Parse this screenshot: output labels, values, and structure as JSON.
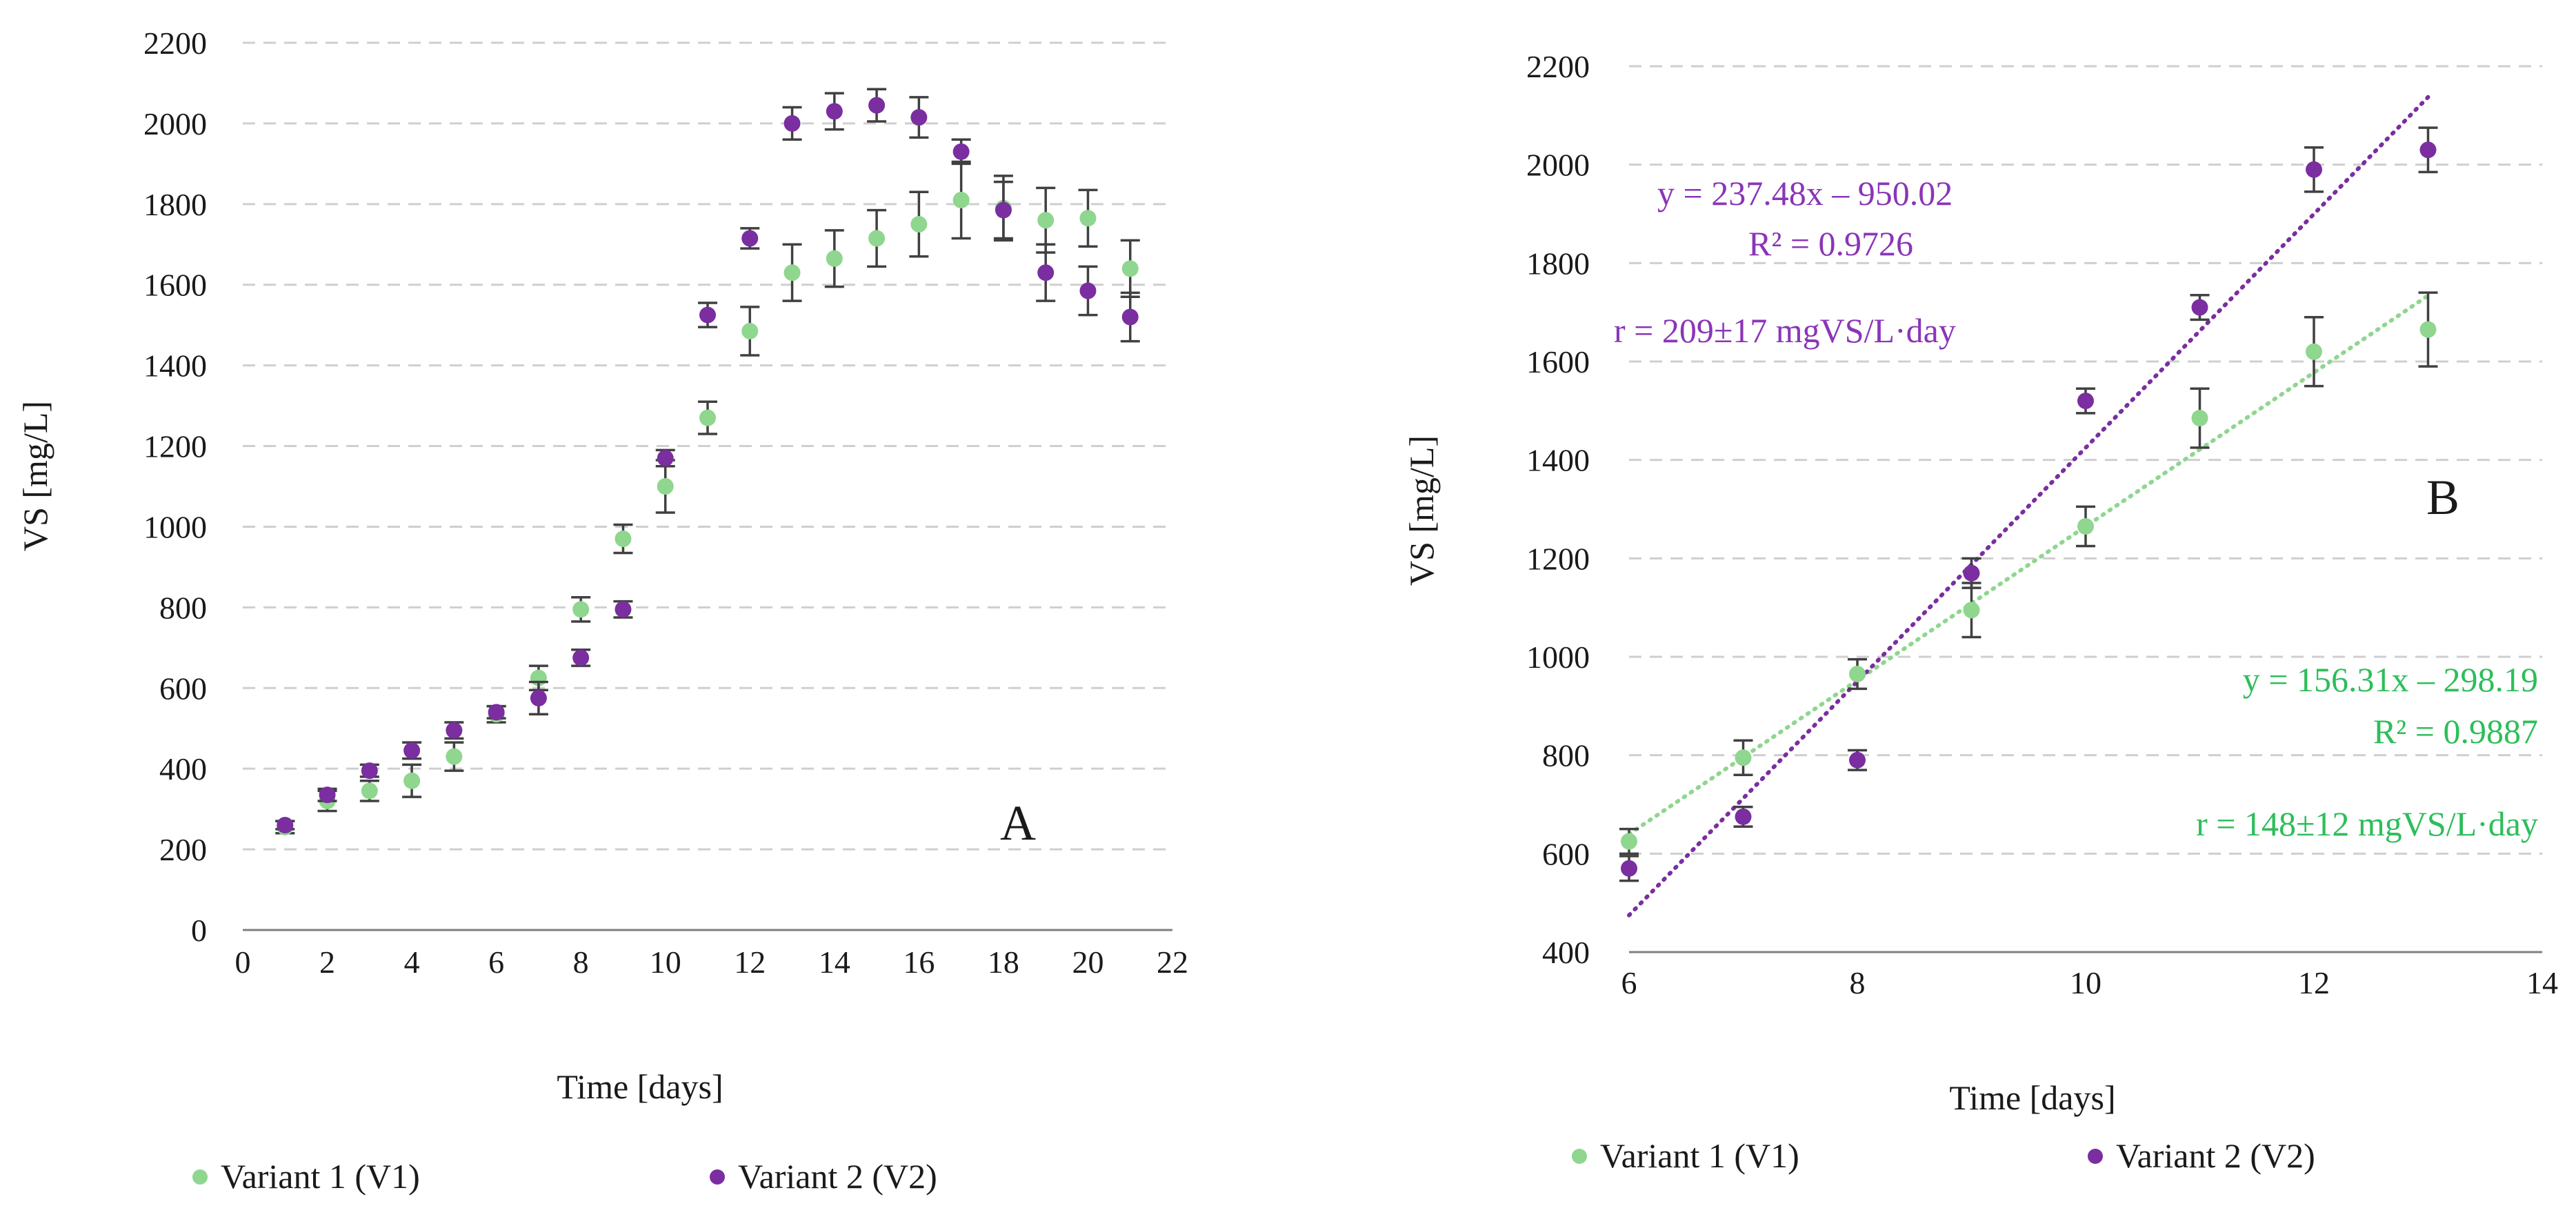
{
  "colors": {
    "v1": "#8fd68f",
    "v2": "#7a2ea0",
    "v1_text": "#2dbe5a",
    "v2_text": "#8a35b8"
  },
  "chart_data": [
    {
      "panel": "A",
      "type": "scatter",
      "xlabel": "Time [days]",
      "ylabel": "VS [mg/L]",
      "xlim": [
        0,
        22
      ],
      "ylim": [
        0,
        2200
      ],
      "xticks": [
        0,
        2,
        4,
        6,
        8,
        10,
        12,
        14,
        16,
        18,
        20,
        22
      ],
      "yticks": [
        0,
        200,
        400,
        600,
        800,
        1000,
        1200,
        1400,
        1600,
        1800,
        2000,
        2200
      ],
      "grid": true,
      "legend_position": "bottom",
      "series": [
        {
          "name": "Variant 1 (V1)",
          "color": "#8fd68f",
          "x": [
            1,
            2,
            3,
            4,
            5,
            6,
            7,
            8,
            9,
            10,
            11,
            12,
            13,
            14,
            15,
            16,
            17,
            18,
            19,
            20,
            21
          ],
          "y": [
            255,
            320,
            345,
            370,
            430,
            535,
            625,
            795,
            970,
            1100,
            1270,
            1485,
            1630,
            1665,
            1715,
            1750,
            1810,
            1790,
            1760,
            1765,
            1640
          ],
          "err": [
            15,
            25,
            25,
            40,
            35,
            20,
            30,
            30,
            35,
            65,
            40,
            60,
            70,
            70,
            70,
            80,
            95,
            80,
            80,
            70,
            70
          ]
        },
        {
          "name": "Variant 2 (V2)",
          "color": "#7a2ea0",
          "x": [
            1,
            2,
            3,
            4,
            5,
            6,
            7,
            8,
            9,
            10,
            11,
            12,
            13,
            14,
            15,
            16,
            17,
            18,
            19,
            20,
            21
          ],
          "y": [
            260,
            335,
            395,
            445,
            495,
            540,
            575,
            675,
            795,
            1170,
            1525,
            1715,
            2000,
            2030,
            2045,
            2015,
            1930,
            1785,
            1630,
            1585,
            1520
          ],
          "err": [
            10,
            15,
            15,
            20,
            20,
            15,
            40,
            20,
            20,
            20,
            30,
            25,
            40,
            45,
            40,
            50,
            30,
            70,
            70,
            60,
            60
          ]
        }
      ]
    },
    {
      "panel": "B",
      "type": "scatter",
      "xlabel": "Time [days]",
      "ylabel": "VS [mg/L]",
      "xlim": [
        6,
        14
      ],
      "ylim": [
        400,
        2200
      ],
      "xticks": [
        6,
        8,
        10,
        12,
        14
      ],
      "yticks": [
        400,
        600,
        800,
        1000,
        1200,
        1400,
        1600,
        1800,
        2000,
        2200
      ],
      "grid": true,
      "legend_position": "bottom",
      "series": [
        {
          "name": "Variant 1 (V1)",
          "color": "#8fd68f",
          "x": [
            6,
            7,
            8,
            9,
            10,
            11,
            12,
            13
          ],
          "y": [
            625,
            795,
            965,
            1095,
            1265,
            1485,
            1620,
            1665
          ],
          "err": [
            25,
            35,
            30,
            55,
            40,
            60,
            70,
            75
          ],
          "trendline": {
            "slope": 156.31,
            "intercept": -298.19
          }
        },
        {
          "name": "Variant 2 (V2)",
          "color": "#7a2ea0",
          "x": [
            6,
            7,
            8,
            9,
            10,
            11,
            12,
            13
          ],
          "y": [
            570,
            675,
            790,
            1170,
            1520,
            1710,
            1990,
            2030
          ],
          "err": [
            25,
            20,
            20,
            30,
            25,
            25,
            45,
            45
          ],
          "trendline": {
            "slope": 237.48,
            "intercept": -950.02
          }
        }
      ]
    }
  ],
  "panels": {
    "a": {
      "letter": "A",
      "xlabel": "Time [days]",
      "ylabel": "VS [mg/L]"
    },
    "b": {
      "letter": "B",
      "xlabel": "Time [days]",
      "ylabel": "VS [mg/L]"
    }
  },
  "legend": {
    "v1_label": "Variant 1 (V1)",
    "v2_label": "Variant 2 (V2)"
  },
  "annotations": {
    "v2_equation": "y = 237.48x – 950.02",
    "v2_r2": "R² = 0.9726",
    "v2_rate": "r = 209±17 mgVS/L·day",
    "v1_equation": "y = 156.31x – 298.19",
    "v1_r2": "R² = 0.9887",
    "v1_rate": "r = 148±12 mgVS/L·day"
  }
}
